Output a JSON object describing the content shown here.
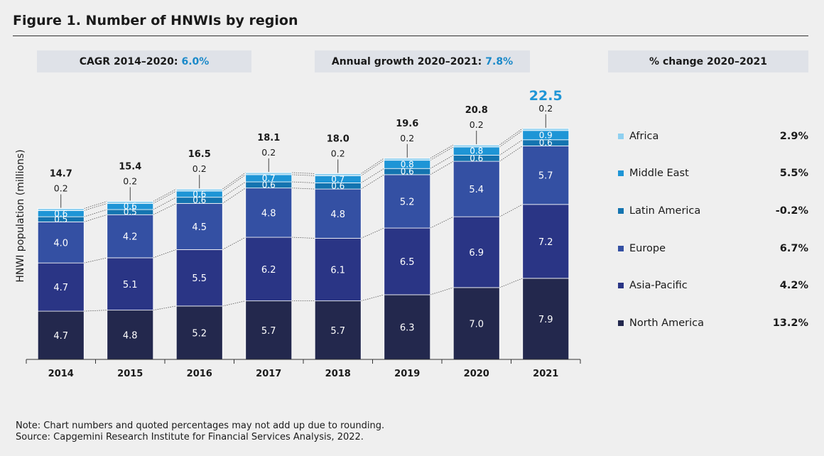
{
  "figure_title": "Figure 1. Number of HNWIs by region",
  "pills": {
    "cagr_label": "CAGR 2014–2020:",
    "cagr_value": "6.0%",
    "annual_label": "Annual growth 2020–2021:",
    "annual_value": "7.8%",
    "change_label": "% change 2020–2021"
  },
  "colors": {
    "accent": "#1a89c9",
    "North America": "#23284d",
    "Asia-Pacific": "#2a3585",
    "Europe": "#3450a3",
    "Latin America": "#1474b0",
    "Middle East": "#1e95d6",
    "Africa": "#8fd0f0"
  },
  "legend": [
    {
      "name": "Africa",
      "pct": "2.9%"
    },
    {
      "name": "Middle East",
      "pct": "5.5%"
    },
    {
      "name": "Latin America",
      "pct": "-0.2%"
    },
    {
      "name": "Europe",
      "pct": "6.7%"
    },
    {
      "name": "Asia-Pacific",
      "pct": "4.2%"
    },
    {
      "name": "North America",
      "pct": "13.2%"
    }
  ],
  "chart_data": {
    "type": "bar",
    "stacked": true,
    "title": "Figure 1. Number of HNWIs by region",
    "ylabel": "HNWI population (millions)",
    "xlabel": "",
    "categories": [
      "2014",
      "2015",
      "2016",
      "2017",
      "2018",
      "2019",
      "2020",
      "2021"
    ],
    "ylim": [
      0,
      23
    ],
    "totals": [
      "14.7",
      "15.4",
      "16.5",
      "18.1",
      "18.0",
      "19.6",
      "20.8",
      "22.5"
    ],
    "series": [
      {
        "name": "North America",
        "values": [
          4.7,
          4.8,
          5.2,
          5.7,
          5.7,
          6.3,
          7.0,
          7.9
        ]
      },
      {
        "name": "Asia-Pacific",
        "values": [
          4.7,
          5.1,
          5.5,
          6.2,
          6.1,
          6.5,
          6.9,
          7.2
        ]
      },
      {
        "name": "Europe",
        "values": [
          4.0,
          4.2,
          4.5,
          4.8,
          4.8,
          5.2,
          5.4,
          5.7
        ]
      },
      {
        "name": "Latin America",
        "values": [
          0.5,
          0.5,
          0.6,
          0.6,
          0.6,
          0.6,
          0.6,
          0.6
        ]
      },
      {
        "name": "Middle East",
        "values": [
          0.6,
          0.6,
          0.6,
          0.7,
          0.7,
          0.8,
          0.8,
          0.9
        ]
      },
      {
        "name": "Africa",
        "values": [
          0.2,
          0.2,
          0.2,
          0.2,
          0.2,
          0.2,
          0.2,
          0.2
        ]
      }
    ]
  },
  "note_line1": "Note: Chart numbers and quoted percentages may not add up due to rounding.",
  "note_line2": "Source: Capgemini Research Institute for Financial Services Analysis, 2022."
}
